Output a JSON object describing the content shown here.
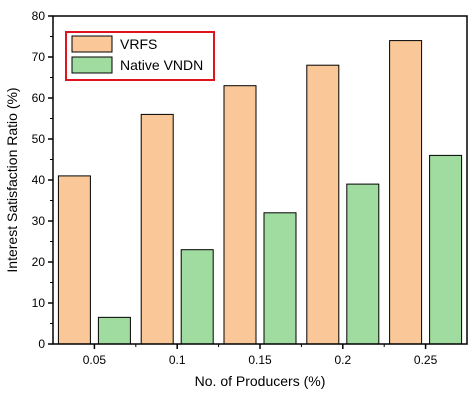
{
  "chart_data": {
    "type": "bar",
    "categories": [
      "0.05",
      "0.1",
      "0.15",
      "0.2",
      "0.25"
    ],
    "series": [
      {
        "name": "VRFS",
        "values": [
          41,
          56,
          63,
          68,
          74
        ],
        "color": "#fac898"
      },
      {
        "name": "Native VNDN",
        "values": [
          6.5,
          23,
          32,
          39,
          46
        ],
        "color": "#a0dba0"
      }
    ],
    "xlabel": "No. of Producers (%)",
    "ylabel": "Interest Satisfaction Ratio (%)",
    "ylim": [
      0,
      80
    ],
    "yticks": [
      "0",
      "10",
      "20",
      "30",
      "40",
      "50",
      "60",
      "70",
      "80"
    ],
    "grid": false,
    "legend": {
      "position": "top-left",
      "border_color": "#e0141e"
    },
    "bar_border_color": "#000000"
  }
}
